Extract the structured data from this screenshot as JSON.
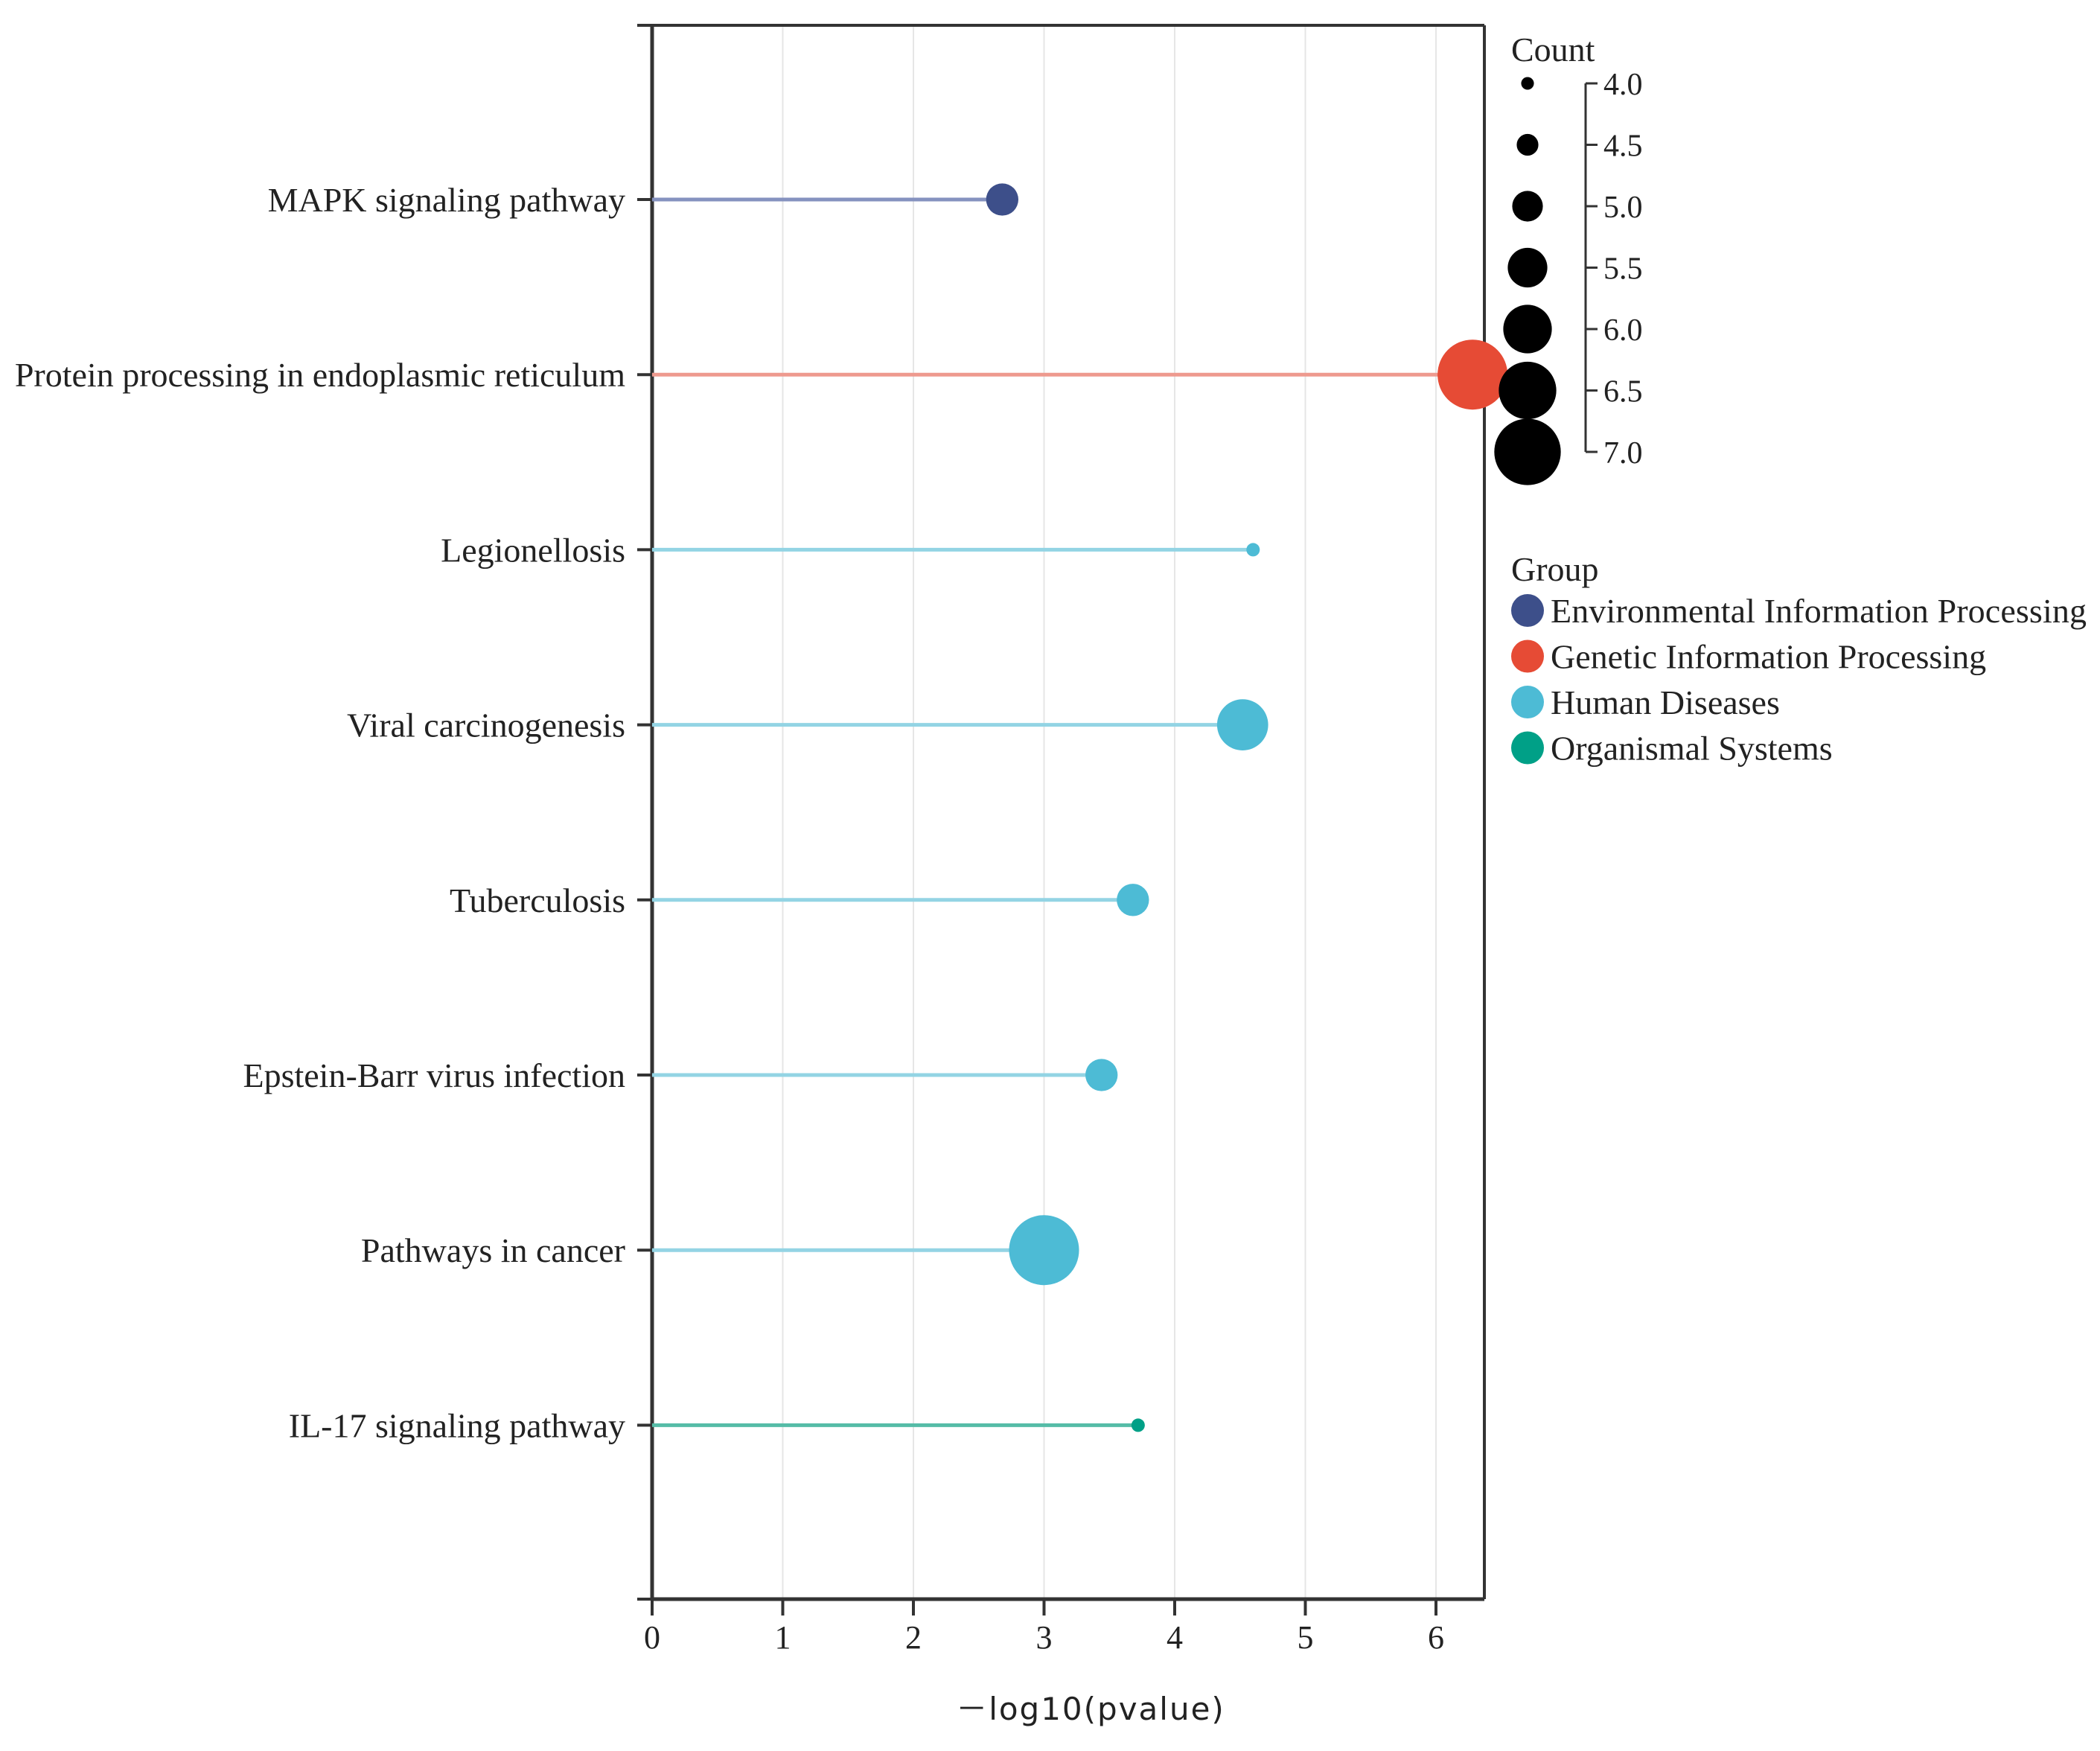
{
  "chart_data": {
    "type": "lollipop",
    "title": "",
    "xlabel": "－log10(pvalue)",
    "ylabel": "",
    "xlim": [
      0,
      6.4
    ],
    "xticks": [
      0,
      1,
      2,
      3,
      4,
      5,
      6
    ],
    "grid": true,
    "categories": [
      "MAPK signaling pathway",
      "Protein processing in endoplasmic reticulum",
      "Legionellosis",
      "Viral carcinogenesis",
      "Tuberculosis",
      "Epstein-Barr virus infection",
      "Pathways in cancer",
      "IL-17 signaling pathway"
    ],
    "points": [
      {
        "label": "MAPK signaling pathway",
        "value": 2.68,
        "count": 5.0,
        "group": "Environmental Information Processing"
      },
      {
        "label": "Protein processing in endoplasmic reticulum",
        "value": 6.28,
        "count": 7.0,
        "group": "Genetic Information Processing"
      },
      {
        "label": "Legionellosis",
        "value": 4.6,
        "count": 4.0,
        "group": "Human Diseases"
      },
      {
        "label": "Viral carcinogenesis",
        "value": 4.52,
        "count": 6.0,
        "group": "Human Diseases"
      },
      {
        "label": "Tuberculosis",
        "value": 3.68,
        "count": 5.0,
        "group": "Human Diseases"
      },
      {
        "label": "Epstein-Barr virus infection",
        "value": 3.44,
        "count": 5.0,
        "group": "Human Diseases"
      },
      {
        "label": "Pathways in cancer",
        "value": 3.0,
        "count": 7.0,
        "group": "Human Diseases"
      },
      {
        "label": "IL-17 signaling pathway",
        "value": 3.72,
        "count": 4.0,
        "group": "Organismal Systems"
      }
    ],
    "size_legend": {
      "title": "Count",
      "values": [
        4.0,
        4.5,
        5.0,
        5.5,
        6.0,
        6.5,
        7.0
      ],
      "labels": [
        "4.0",
        "4.5",
        "5.0",
        "5.5",
        "6.0",
        "6.5",
        "7.0"
      ]
    },
    "color_legend": {
      "title": "Group",
      "entries": [
        {
          "name": "Environmental Information Processing",
          "color": "#3d4f8a"
        },
        {
          "name": "Genetic Information Processing",
          "color": "#e64b35"
        },
        {
          "name": "Human Diseases",
          "color": "#4dbbd5"
        },
        {
          "name": "Organismal Systems",
          "color": "#00a087"
        }
      ]
    },
    "line_colors": {
      "Environmental Information Processing": "#8592bf",
      "Genetic Information Processing": "#ee9a8f",
      "Human Diseases": "#93d4e4",
      "Organismal Systems": "#55bca7"
    }
  }
}
